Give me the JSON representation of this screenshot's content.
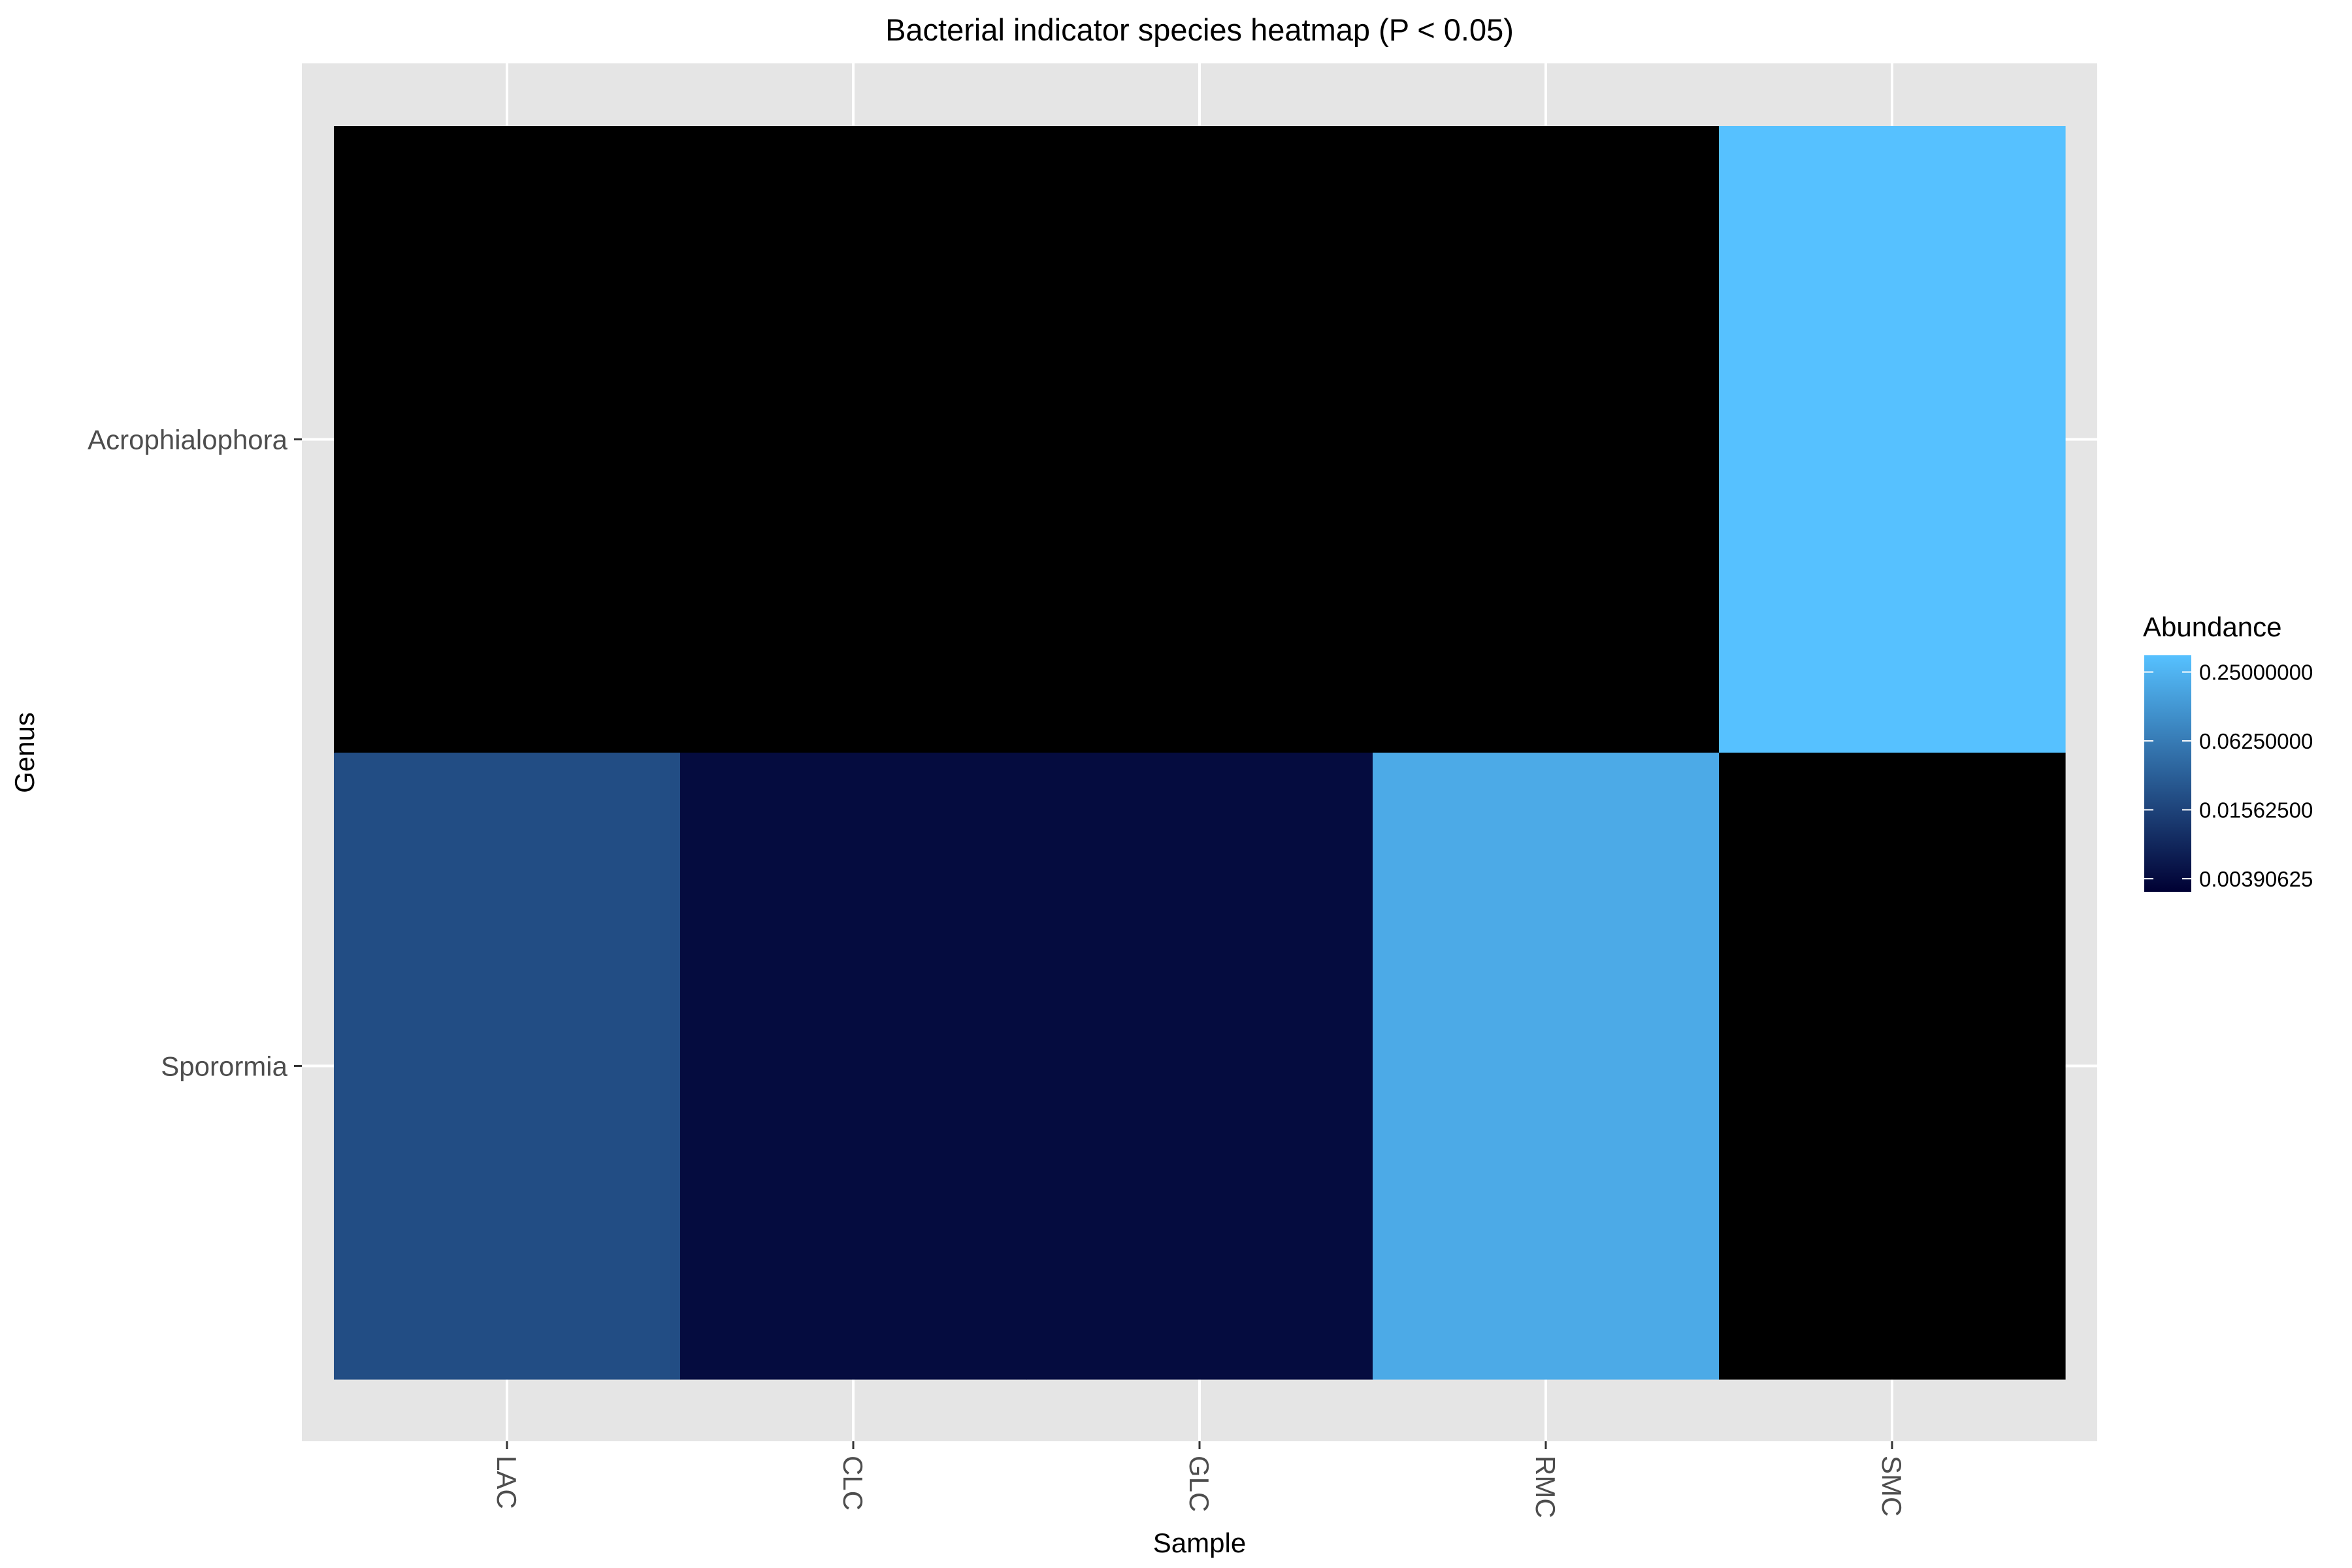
{
  "chart_data": {
    "type": "heatmap",
    "title": "Bacterial indicator species heatmap (P < 0.05)",
    "xlabel": "Sample",
    "ylabel": "Genus",
    "x_categories": [
      "LAC",
      "CLC",
      "GLC",
      "RMC",
      "SMC"
    ],
    "y_categories": [
      "Acrophialophora",
      "Sporormia"
    ],
    "values": [
      [
        0,
        0,
        0,
        0,
        0.35
      ],
      [
        0.02,
        0.004,
        0.004,
        0.2,
        0
      ]
    ],
    "color_scale": {
      "type": "log2",
      "low_color": "#000033",
      "high_color": "#56c1ff",
      "zero_color": "#000000",
      "domain": [
        0.003,
        0.35
      ]
    },
    "legend": {
      "title": "Abundance",
      "position": "right",
      "ticks": [
        0.25,
        0.0625,
        0.015625,
        0.00390625
      ],
      "tick_labels": [
        "0.25000000",
        "0.06250000",
        "0.01562500",
        "0.00390625"
      ]
    },
    "panel_background": "#e5e5e5",
    "grid": true
  }
}
